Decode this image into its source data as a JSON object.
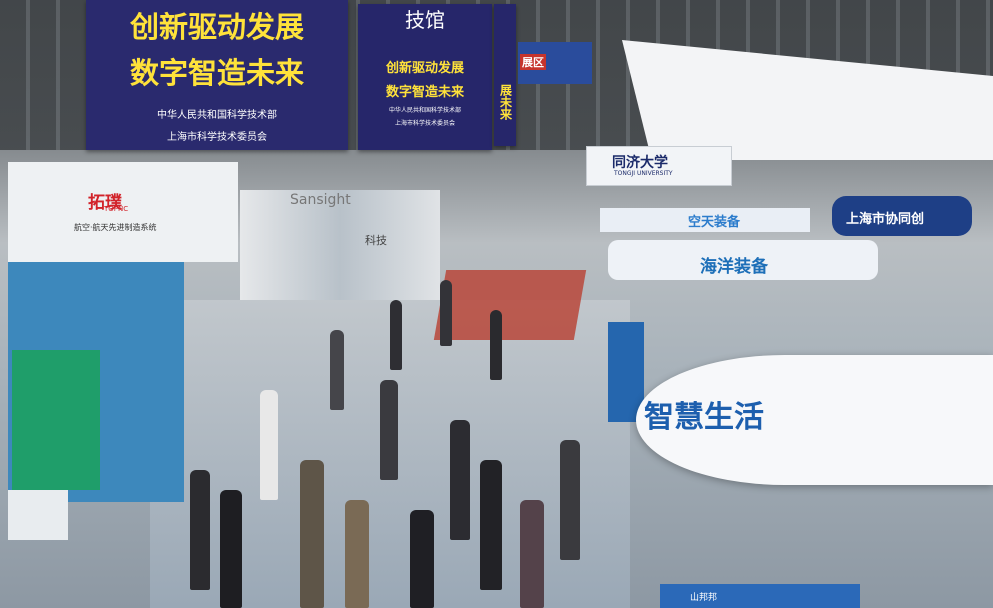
{
  "banners": {
    "main": {
      "line1": "创新驱动发展",
      "line2": "数字智造未来",
      "org1": "中华人民共和国科学技术部",
      "org2": "上海市科学技术委员会"
    },
    "second": {
      "calligraphy": "技馆",
      "line1": "创新驱动发展",
      "line2": "数字智造未来",
      "org1": "中华人民共和国科学技术部",
      "org2": "上海市科学技术委员会"
    },
    "third": {
      "text": "展未来"
    }
  },
  "booths": {
    "topnc": {
      "logo": "拓璞",
      "sub": "TOPNC",
      "caption": "航空·航天先进制造系统"
    },
    "sansight": "Sansight",
    "tech": "科技",
    "tongji": {
      "name": "同济大学",
      "sub": "TONGJI UNIVERSITY"
    },
    "zone": "展区",
    "space": "空天装备",
    "ocean": "海洋装备",
    "shanghai": "上海市协同创",
    "smart_life": "智慧生活",
    "bottom_sign": "山邦邦"
  },
  "colors": {
    "banner_bg": "#2a2a6e",
    "banner_text": "#ffe23a",
    "ring_text": "#1d5fae",
    "topnc_red": "#d2232a"
  }
}
